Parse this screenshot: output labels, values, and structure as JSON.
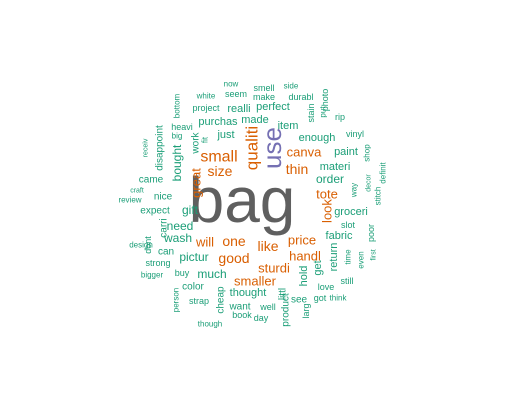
{
  "chart_data": {
    "type": "wordcloud",
    "title": "",
    "colors": {
      "high": "#5f5f5f",
      "upper": "#7570b3",
      "mid": "#d95f02",
      "low": "#1b9e77"
    },
    "words": [
      {
        "text": "bag",
        "tier": "high"
      },
      {
        "text": "use",
        "tier": "upper"
      },
      {
        "text": "qualiti",
        "tier": "mid"
      },
      {
        "text": "small",
        "tier": "mid"
      },
      {
        "text": "size",
        "tier": "mid"
      },
      {
        "text": "thin",
        "tier": "mid"
      },
      {
        "text": "canva",
        "tier": "mid"
      },
      {
        "text": "great",
        "tier": "mid"
      },
      {
        "text": "like",
        "tier": "mid"
      },
      {
        "text": "one",
        "tier": "mid"
      },
      {
        "text": "good",
        "tier": "mid"
      },
      {
        "text": "will",
        "tier": "mid"
      },
      {
        "text": "price",
        "tier": "mid"
      },
      {
        "text": "handl",
        "tier": "mid"
      },
      {
        "text": "tote",
        "tier": "mid"
      },
      {
        "text": "look",
        "tier": "mid"
      },
      {
        "text": "sturdi",
        "tier": "mid"
      },
      {
        "text": "smaller",
        "tier": "mid"
      },
      {
        "text": "order",
        "tier": "low"
      },
      {
        "text": "bought",
        "tier": "low"
      },
      {
        "text": "gift",
        "tier": "low"
      },
      {
        "text": "need",
        "tier": "low"
      },
      {
        "text": "wash",
        "tier": "low"
      },
      {
        "text": "pictur",
        "tier": "low"
      },
      {
        "text": "much",
        "tier": "low"
      },
      {
        "text": "hold",
        "tier": "low"
      },
      {
        "text": "get",
        "tier": "low"
      },
      {
        "text": "fabric",
        "tier": "low"
      },
      {
        "text": "return",
        "tier": "low"
      },
      {
        "text": "materi",
        "tier": "low"
      },
      {
        "text": "paint",
        "tier": "low"
      },
      {
        "text": "groceri",
        "tier": "low"
      },
      {
        "text": "item",
        "tier": "low"
      },
      {
        "text": "just",
        "tier": "low"
      },
      {
        "text": "enough",
        "tier": "low"
      },
      {
        "text": "purchas",
        "tier": "low"
      },
      {
        "text": "made",
        "tier": "low"
      },
      {
        "text": "realli",
        "tier": "low"
      },
      {
        "text": "perfect",
        "tier": "low"
      },
      {
        "text": "thought",
        "tier": "low"
      },
      {
        "text": "littl",
        "tier": "low"
      },
      {
        "text": "want",
        "tier": "low"
      },
      {
        "text": "work",
        "tier": "low"
      },
      {
        "text": "disappoint",
        "tier": "low"
      },
      {
        "text": "came",
        "tier": "low"
      },
      {
        "text": "nice",
        "tier": "low"
      },
      {
        "text": "expect",
        "tier": "low"
      },
      {
        "text": "carri",
        "tier": "low"
      },
      {
        "text": "can",
        "tier": "low"
      },
      {
        "text": "dont",
        "tier": "low"
      },
      {
        "text": "strong",
        "tier": "low"
      },
      {
        "text": "buy",
        "tier": "low"
      },
      {
        "text": "color",
        "tier": "low"
      },
      {
        "text": "cheap",
        "tier": "low"
      },
      {
        "text": "strap",
        "tier": "low"
      },
      {
        "text": "product",
        "tier": "low"
      },
      {
        "text": "see",
        "tier": "low"
      },
      {
        "text": "larg",
        "tier": "low"
      },
      {
        "text": "love",
        "tier": "low"
      },
      {
        "text": "got",
        "tier": "low"
      },
      {
        "text": "still",
        "tier": "low"
      },
      {
        "text": "slot",
        "tier": "low"
      },
      {
        "text": "time",
        "tier": "low"
      },
      {
        "text": "even",
        "tier": "low"
      },
      {
        "text": "poor",
        "tier": "low"
      },
      {
        "text": "first",
        "tier": "low"
      },
      {
        "text": "way",
        "tier": "low"
      },
      {
        "text": "stitch",
        "tier": "low"
      },
      {
        "text": "definit",
        "tier": "low"
      },
      {
        "text": "decor",
        "tier": "low"
      },
      {
        "text": "shop",
        "tier": "low"
      },
      {
        "text": "vinyl",
        "tier": "low"
      },
      {
        "text": "rip",
        "tier": "low"
      },
      {
        "text": "photo",
        "tier": "low"
      },
      {
        "text": "put",
        "tier": "low"
      },
      {
        "text": "stain",
        "tier": "low"
      },
      {
        "text": "durabl",
        "tier": "low"
      },
      {
        "text": "side",
        "tier": "low"
      },
      {
        "text": "smell",
        "tier": "low"
      },
      {
        "text": "now",
        "tier": "low"
      },
      {
        "text": "seem",
        "tier": "low"
      },
      {
        "text": "white",
        "tier": "low"
      },
      {
        "text": "project",
        "tier": "low"
      },
      {
        "text": "bottom",
        "tier": "low"
      },
      {
        "text": "heavi",
        "tier": "low"
      },
      {
        "text": "big",
        "tier": "low"
      },
      {
        "text": "fit",
        "tier": "low"
      },
      {
        "text": "receiv",
        "tier": "low"
      },
      {
        "text": "craft",
        "tier": "low"
      },
      {
        "text": "review",
        "tier": "low"
      },
      {
        "text": "design",
        "tier": "low"
      },
      {
        "text": "bigger",
        "tier": "low"
      },
      {
        "text": "person",
        "tier": "low"
      },
      {
        "text": "though",
        "tier": "low"
      },
      {
        "text": "book",
        "tier": "low"
      },
      {
        "text": "day",
        "tier": "low"
      },
      {
        "text": "well",
        "tier": "low"
      },
      {
        "text": "think",
        "tier": "low"
      },
      {
        "text": "make",
        "tier": "low"
      }
    ]
  }
}
